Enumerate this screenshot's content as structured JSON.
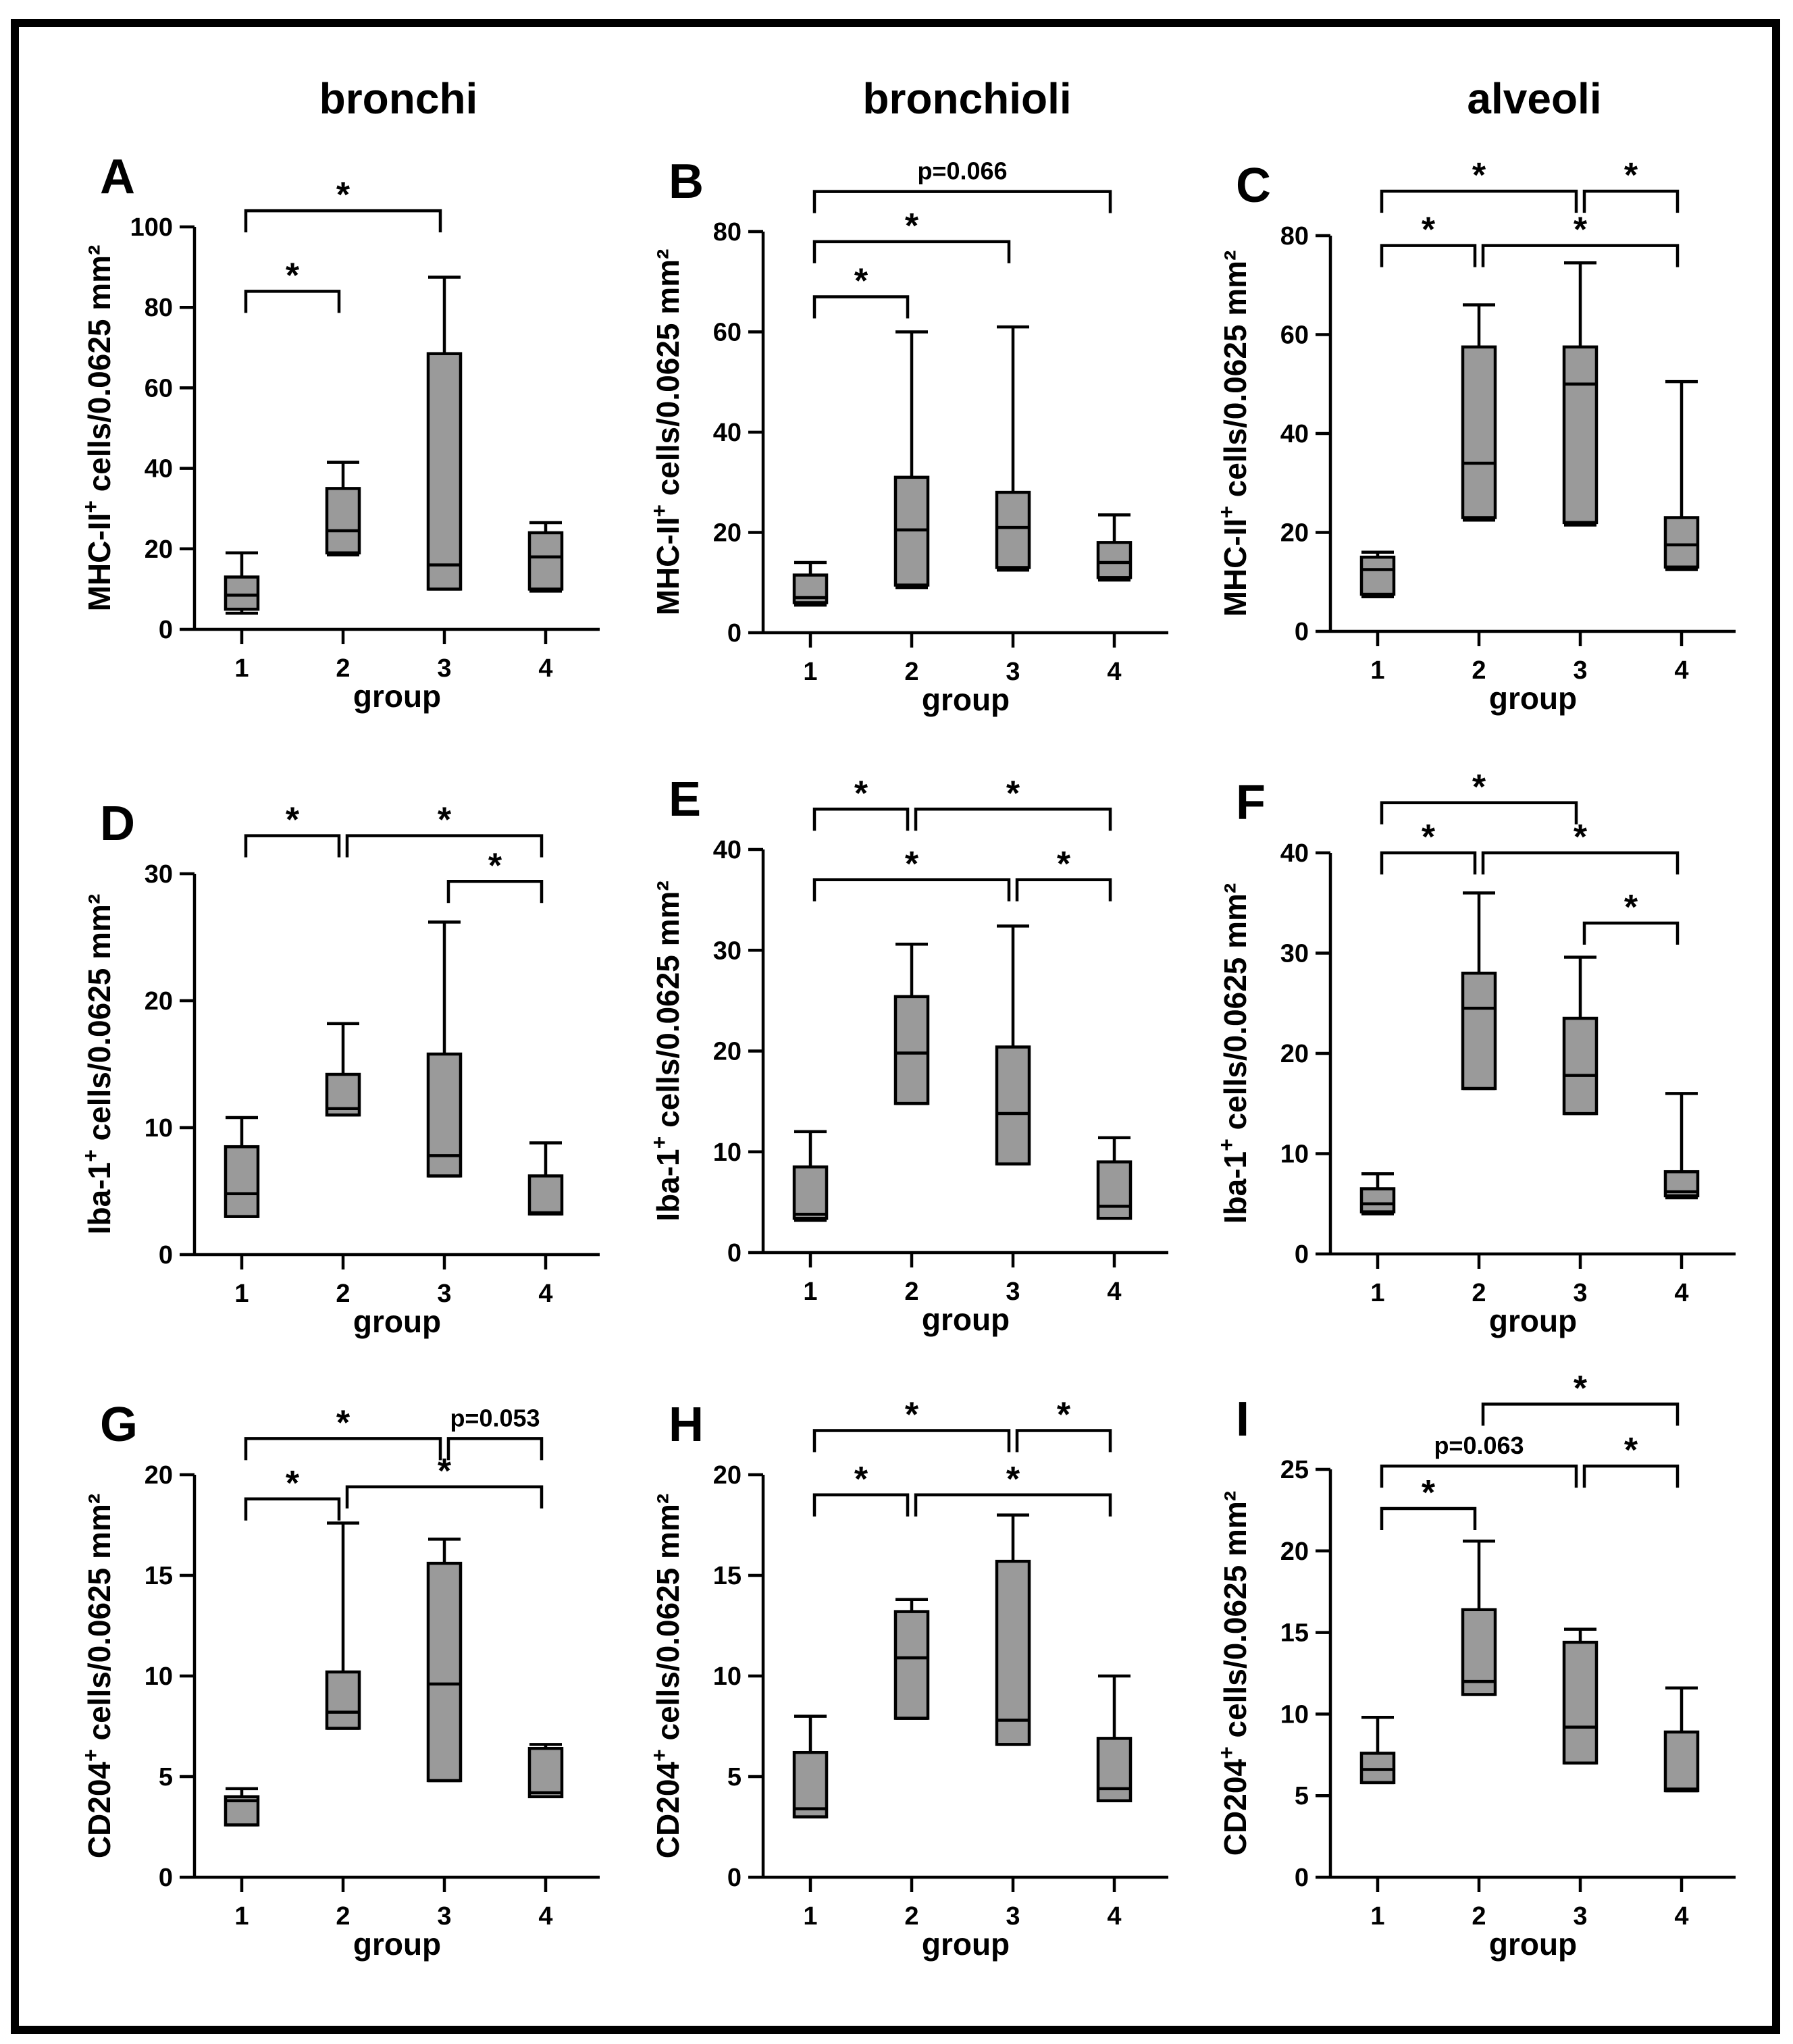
{
  "figure": {
    "column_titles": [
      "bronchi",
      "bronchioli",
      "alveoli"
    ],
    "colors": {
      "box_fill": "#9a9a9a",
      "line": "#000000",
      "background": "#ffffff"
    }
  },
  "chart_data": [
    {
      "letter": "A",
      "type": "box",
      "xlabel": "group",
      "ylabel_main": "MHC-II",
      "ylabel_sup": "+",
      "ylabel_rest": " cells/0.0625 mm²",
      "ylim": [
        0,
        100
      ],
      "yticks": [
        0,
        20,
        40,
        60,
        80,
        100
      ],
      "categories": [
        "1",
        "2",
        "3",
        "4"
      ],
      "boxes": [
        {
          "group": "1",
          "min": 4,
          "q1": 5,
          "median": 8.5,
          "q3": 13,
          "max": 19
        },
        {
          "group": "2",
          "min": 18.5,
          "q1": 19,
          "median": 24.5,
          "q3": 35,
          "max": 41.5
        },
        {
          "group": "3",
          "min": 10,
          "q1": 10,
          "median": 16,
          "q3": 68.5,
          "max": 87.5
        },
        {
          "group": "4",
          "min": 9.5,
          "q1": 10,
          "median": 18,
          "q3": 24,
          "max": 26.5
        }
      ],
      "brackets": [
        {
          "from": 1,
          "to": 2,
          "y": 84,
          "label": "*"
        },
        {
          "from": 1,
          "to": 3,
          "y": 104,
          "label": "*"
        }
      ]
    },
    {
      "letter": "B",
      "type": "box",
      "xlabel": "group",
      "ylabel_main": "MHC-II",
      "ylabel_sup": "+",
      "ylabel_rest": " cells/0.0625 mm²",
      "ylim": [
        0,
        80
      ],
      "yticks": [
        0,
        20,
        40,
        60,
        80
      ],
      "categories": [
        "1",
        "2",
        "3",
        "4"
      ],
      "boxes": [
        {
          "group": "1",
          "min": 5.5,
          "q1": 6,
          "median": 7,
          "q3": 11.5,
          "max": 14
        },
        {
          "group": "2",
          "min": 9,
          "q1": 9.5,
          "median": 20.5,
          "q3": 31,
          "max": 60
        },
        {
          "group": "3",
          "min": 12.5,
          "q1": 13,
          "median": 21,
          "q3": 28,
          "max": 61
        },
        {
          "group": "4",
          "min": 10.5,
          "q1": 11,
          "median": 14,
          "q3": 18,
          "max": 23.5
        }
      ],
      "brackets": [
        {
          "from": 1,
          "to": 2,
          "y": 67,
          "label": "*"
        },
        {
          "from": 1,
          "to": 3,
          "y": 78,
          "label": "*"
        },
        {
          "from": 1,
          "to": 4,
          "y": 88,
          "label": "p=0.066"
        }
      ]
    },
    {
      "letter": "C",
      "type": "box",
      "xlabel": "group",
      "ylabel_main": "MHC-II",
      "ylabel_sup": "+",
      "ylabel_rest": " cells/0.0625 mm²",
      "ylim": [
        0,
        80
      ],
      "yticks": [
        0,
        20,
        40,
        60,
        80
      ],
      "categories": [
        "1",
        "2",
        "3",
        "4"
      ],
      "boxes": [
        {
          "group": "1",
          "min": 7,
          "q1": 7.5,
          "median": 12.5,
          "q3": 15,
          "max": 16
        },
        {
          "group": "2",
          "min": 22.5,
          "q1": 23,
          "median": 34,
          "q3": 57.5,
          "max": 66
        },
        {
          "group": "3",
          "min": 21.5,
          "q1": 22,
          "median": 50,
          "q3": 57.5,
          "max": 74.5
        },
        {
          "group": "4",
          "min": 12.5,
          "q1": 13,
          "median": 17.5,
          "q3": 23,
          "max": 50.5
        }
      ],
      "brackets": [
        {
          "from": 1,
          "to": 2,
          "y": 78,
          "label": "*"
        },
        {
          "from": 2,
          "to": 4,
          "y": 78,
          "label": "*"
        },
        {
          "from": 1,
          "to": 3,
          "y": 89,
          "label": "*"
        },
        {
          "from": 3,
          "to": 4,
          "y": 89,
          "label": "*"
        }
      ]
    },
    {
      "letter": "D",
      "type": "box",
      "xlabel": "group",
      "ylabel_main": "Iba-1",
      "ylabel_sup": "+",
      "ylabel_rest": " cells/0.0625 mm²",
      "ylim": [
        0,
        30
      ],
      "yticks": [
        0,
        10,
        20,
        30
      ],
      "categories": [
        "1",
        "2",
        "3",
        "4"
      ],
      "boxes": [
        {
          "group": "1",
          "min": 3,
          "q1": 3,
          "median": 4.8,
          "q3": 8.5,
          "max": 10.8
        },
        {
          "group": "2",
          "min": 11,
          "q1": 11,
          "median": 11.5,
          "q3": 14.2,
          "max": 18.2
        },
        {
          "group": "3",
          "min": 6.2,
          "q1": 6.2,
          "median": 7.8,
          "q3": 15.8,
          "max": 26.2
        },
        {
          "group": "4",
          "min": 3.2,
          "q1": 3.2,
          "median": 3.3,
          "q3": 6.2,
          "max": 8.8
        }
      ],
      "brackets": [
        {
          "from": 1,
          "to": 2,
          "y": 33,
          "label": "*"
        },
        {
          "from": 2,
          "to": 4,
          "y": 33,
          "label": "*"
        },
        {
          "from": 3,
          "to": 4,
          "y": 29.4,
          "label": "*"
        }
      ]
    },
    {
      "letter": "E",
      "type": "box",
      "xlabel": "group",
      "ylabel_main": "Iba-1",
      "ylabel_sup": "+",
      "ylabel_rest": " cells/0.0625 mm²",
      "ylim": [
        0,
        40
      ],
      "yticks": [
        0,
        10,
        20,
        30,
        40
      ],
      "categories": [
        "1",
        "2",
        "3",
        "4"
      ],
      "boxes": [
        {
          "group": "1",
          "min": 3.2,
          "q1": 3.4,
          "median": 3.8,
          "q3": 8.5,
          "max": 12
        },
        {
          "group": "2",
          "min": 14.8,
          "q1": 14.8,
          "median": 19.8,
          "q3": 25.4,
          "max": 30.6
        },
        {
          "group": "3",
          "min": 8.8,
          "q1": 8.8,
          "median": 13.8,
          "q3": 20.4,
          "max": 32.4
        },
        {
          "group": "4",
          "min": 3.4,
          "q1": 3.4,
          "median": 4.6,
          "q3": 9,
          "max": 11.4
        }
      ],
      "brackets": [
        {
          "from": 1,
          "to": 3,
          "y": 37,
          "label": "*"
        },
        {
          "from": 3,
          "to": 4,
          "y": 37,
          "label": "*"
        },
        {
          "from": 1,
          "to": 2,
          "y": 44,
          "label": "*"
        },
        {
          "from": 2,
          "to": 4,
          "y": 44,
          "label": "*"
        }
      ]
    },
    {
      "letter": "F",
      "type": "box",
      "xlabel": "group",
      "ylabel_main": "Iba-1",
      "ylabel_sup": "+",
      "ylabel_rest": " cells/0.0625 mm²",
      "ylim": [
        0,
        40
      ],
      "yticks": [
        0,
        10,
        20,
        30,
        40
      ],
      "categories": [
        "1",
        "2",
        "3",
        "4"
      ],
      "boxes": [
        {
          "group": "1",
          "min": 4,
          "q1": 4.2,
          "median": 5,
          "q3": 6.5,
          "max": 8
        },
        {
          "group": "2",
          "min": 16.5,
          "q1": 16.5,
          "median": 24.5,
          "q3": 28,
          "max": 36
        },
        {
          "group": "3",
          "min": 14,
          "q1": 14,
          "median": 17.8,
          "q3": 23.5,
          "max": 29.6
        },
        {
          "group": "4",
          "min": 5.6,
          "q1": 5.8,
          "median": 6.2,
          "q3": 8.2,
          "max": 16
        }
      ],
      "brackets": [
        {
          "from": 3,
          "to": 4,
          "y": 33,
          "label": "*"
        },
        {
          "from": 1,
          "to": 2,
          "y": 40,
          "label": "*"
        },
        {
          "from": 2,
          "to": 4,
          "y": 40,
          "label": "*"
        },
        {
          "from": 1,
          "to": 3,
          "y": 45,
          "label": "*"
        }
      ]
    },
    {
      "letter": "G",
      "type": "box",
      "xlabel": "group",
      "ylabel_main": "CD204",
      "ylabel_sup": "+",
      "ylabel_rest": " cells/0.0625 mm²",
      "ylim": [
        0,
        20
      ],
      "yticks": [
        0,
        5,
        10,
        15,
        20
      ],
      "categories": [
        "1",
        "2",
        "3",
        "4"
      ],
      "boxes": [
        {
          "group": "1",
          "min": 2.6,
          "q1": 2.6,
          "median": 3.8,
          "q3": 4,
          "max": 4.4
        },
        {
          "group": "2",
          "min": 7.4,
          "q1": 7.4,
          "median": 8.2,
          "q3": 10.2,
          "max": 17.6
        },
        {
          "group": "3",
          "min": 4.8,
          "q1": 4.8,
          "median": 9.6,
          "q3": 15.6,
          "max": 16.8
        },
        {
          "group": "4",
          "min": 4,
          "q1": 4,
          "median": 4.2,
          "q3": 6.4,
          "max": 6.6
        }
      ],
      "brackets": [
        {
          "from": 1,
          "to": 2,
          "y": 18.8,
          "label": "*"
        },
        {
          "from": 2,
          "to": 4,
          "y": 19.4,
          "label": "*"
        },
        {
          "from": 1,
          "to": 3,
          "y": 21.8,
          "label": "*"
        },
        {
          "from": 3,
          "to": 4,
          "y": 21.8,
          "label": "p=0.053"
        }
      ]
    },
    {
      "letter": "H",
      "type": "box",
      "xlabel": "group",
      "ylabel_main": "CD204",
      "ylabel_sup": "+",
      "ylabel_rest": " cells/0.0625 mm²",
      "ylim": [
        0,
        20
      ],
      "yticks": [
        0,
        5,
        10,
        15,
        20
      ],
      "categories": [
        "1",
        "2",
        "3",
        "4"
      ],
      "boxes": [
        {
          "group": "1",
          "min": 3,
          "q1": 3,
          "median": 3.4,
          "q3": 6.2,
          "max": 8
        },
        {
          "group": "2",
          "min": 7.9,
          "q1": 7.9,
          "median": 10.9,
          "q3": 13.2,
          "max": 13.8
        },
        {
          "group": "3",
          "min": 6.6,
          "q1": 6.6,
          "median": 7.8,
          "q3": 15.7,
          "max": 18
        },
        {
          "group": "4",
          "min": 3.8,
          "q1": 3.8,
          "median": 4.4,
          "q3": 6.9,
          "max": 10
        }
      ],
      "brackets": [
        {
          "from": 1,
          "to": 2,
          "y": 19,
          "label": "*"
        },
        {
          "from": 2,
          "to": 4,
          "y": 19,
          "label": "*"
        },
        {
          "from": 1,
          "to": 3,
          "y": 22.2,
          "label": "*"
        },
        {
          "from": 3,
          "to": 4,
          "y": 22.2,
          "label": "*"
        }
      ]
    },
    {
      "letter": "I",
      "type": "box",
      "xlabel": "group",
      "ylabel_main": "CD204",
      "ylabel_sup": "+",
      "ylabel_rest": " cells/0.0625 mm²",
      "ylim": [
        0,
        25
      ],
      "yticks": [
        0,
        5,
        10,
        15,
        20,
        25
      ],
      "categories": [
        "1",
        "2",
        "3",
        "4"
      ],
      "boxes": [
        {
          "group": "1",
          "min": 5.8,
          "q1": 5.8,
          "median": 6.6,
          "q3": 7.6,
          "max": 9.8
        },
        {
          "group": "2",
          "min": 11.2,
          "q1": 11.2,
          "median": 12,
          "q3": 16.4,
          "max": 20.6
        },
        {
          "group": "3",
          "min": 7,
          "q1": 7,
          "median": 9.2,
          "q3": 14.4,
          "max": 15.2
        },
        {
          "group": "4",
          "min": 5.3,
          "q1": 5.3,
          "median": 5.4,
          "q3": 8.9,
          "max": 11.6
        }
      ],
      "brackets": [
        {
          "from": 1,
          "to": 2,
          "y": 22.6,
          "label": "*"
        },
        {
          "from": 1,
          "to": 3,
          "y": 25.2,
          "label": "p=0.063"
        },
        {
          "from": 3,
          "to": 4,
          "y": 25.2,
          "label": "*"
        },
        {
          "from": 2,
          "to": 4,
          "y": 29,
          "label": "*"
        }
      ]
    }
  ]
}
